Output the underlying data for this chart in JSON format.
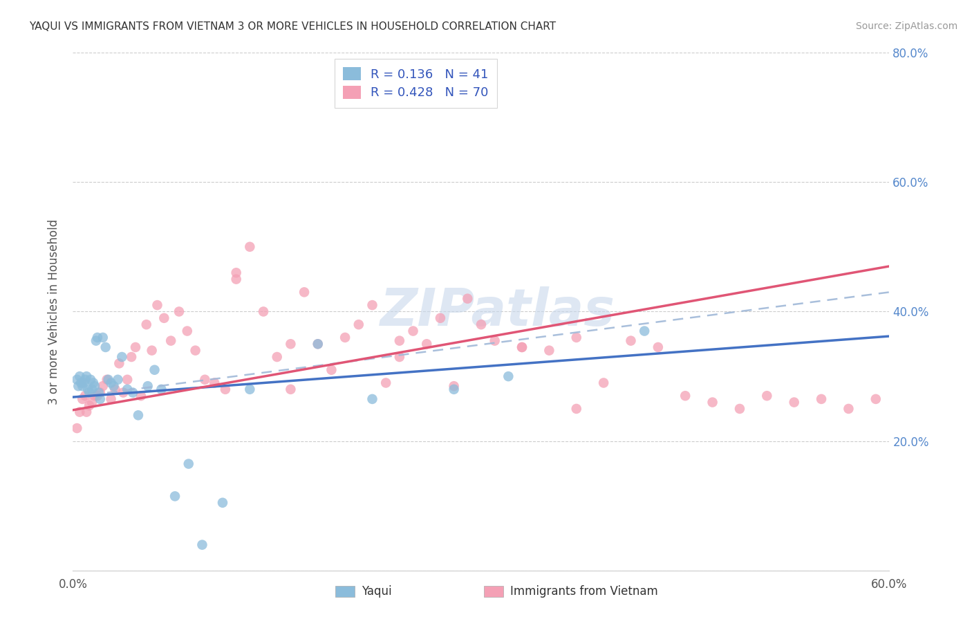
{
  "title": "YAQUI VS IMMIGRANTS FROM VIETNAM 3 OR MORE VEHICLES IN HOUSEHOLD CORRELATION CHART",
  "source": "Source: ZipAtlas.com",
  "ylabel": "3 or more Vehicles in Household",
  "xlim": [
    0.0,
    0.6
  ],
  "ylim": [
    0.0,
    0.8
  ],
  "r_yaqui": 0.136,
  "n_yaqui": 41,
  "r_vietnam": 0.428,
  "n_vietnam": 70,
  "color_yaqui": "#8bbcdb",
  "color_vietnam": "#f4a0b5",
  "line_color_yaqui": "#4472c4",
  "line_color_vietnam": "#e05575",
  "dash_color": "#a0b8d8",
  "watermark": "ZIPatlas",
  "background_color": "#ffffff",
  "yaqui_x": [
    0.003,
    0.004,
    0.005,
    0.006,
    0.007,
    0.008,
    0.009,
    0.01,
    0.011,
    0.012,
    0.013,
    0.014,
    0.015,
    0.016,
    0.017,
    0.018,
    0.019,
    0.02,
    0.022,
    0.024,
    0.026,
    0.028,
    0.03,
    0.033,
    0.036,
    0.04,
    0.044,
    0.048,
    0.055,
    0.06,
    0.065,
    0.075,
    0.085,
    0.095,
    0.11,
    0.13,
    0.18,
    0.22,
    0.28,
    0.32,
    0.42
  ],
  "yaqui_y": [
    0.295,
    0.285,
    0.3,
    0.29,
    0.285,
    0.29,
    0.295,
    0.3,
    0.28,
    0.275,
    0.295,
    0.28,
    0.29,
    0.285,
    0.355,
    0.36,
    0.275,
    0.265,
    0.36,
    0.345,
    0.295,
    0.29,
    0.285,
    0.295,
    0.33,
    0.28,
    0.275,
    0.24,
    0.285,
    0.31,
    0.28,
    0.115,
    0.165,
    0.04,
    0.105,
    0.28,
    0.35,
    0.265,
    0.28,
    0.3,
    0.37
  ],
  "vietnam_x": [
    0.003,
    0.005,
    0.007,
    0.009,
    0.01,
    0.012,
    0.014,
    0.016,
    0.018,
    0.02,
    0.022,
    0.025,
    0.028,
    0.031,
    0.034,
    0.037,
    0.04,
    0.043,
    0.046,
    0.05,
    0.054,
    0.058,
    0.062,
    0.067,
    0.072,
    0.078,
    0.084,
    0.09,
    0.097,
    0.104,
    0.112,
    0.12,
    0.13,
    0.14,
    0.15,
    0.16,
    0.17,
    0.18,
    0.19,
    0.2,
    0.21,
    0.22,
    0.23,
    0.24,
    0.25,
    0.26,
    0.27,
    0.28,
    0.29,
    0.3,
    0.31,
    0.33,
    0.35,
    0.37,
    0.39,
    0.41,
    0.43,
    0.45,
    0.47,
    0.49,
    0.51,
    0.53,
    0.55,
    0.57,
    0.59,
    0.33,
    0.37,
    0.24,
    0.12,
    0.16
  ],
  "vietnam_y": [
    0.22,
    0.245,
    0.265,
    0.27,
    0.245,
    0.255,
    0.26,
    0.27,
    0.27,
    0.275,
    0.285,
    0.295,
    0.265,
    0.28,
    0.32,
    0.275,
    0.295,
    0.33,
    0.345,
    0.27,
    0.38,
    0.34,
    0.41,
    0.39,
    0.355,
    0.4,
    0.37,
    0.34,
    0.295,
    0.29,
    0.28,
    0.46,
    0.5,
    0.4,
    0.33,
    0.35,
    0.43,
    0.35,
    0.31,
    0.36,
    0.38,
    0.41,
    0.29,
    0.33,
    0.37,
    0.35,
    0.39,
    0.285,
    0.42,
    0.38,
    0.355,
    0.345,
    0.34,
    0.25,
    0.29,
    0.355,
    0.345,
    0.27,
    0.26,
    0.25,
    0.27,
    0.26,
    0.265,
    0.25,
    0.265,
    0.345,
    0.36,
    0.355,
    0.45,
    0.28
  ],
  "blue_line_x0": 0.0,
  "blue_line_x1": 0.6,
  "blue_line_y0": 0.268,
  "blue_line_y1": 0.362,
  "pink_line_x0": 0.0,
  "pink_line_x1": 0.6,
  "pink_line_y0": 0.248,
  "pink_line_y1": 0.47,
  "dash_line_x0": 0.0,
  "dash_line_x1": 0.6,
  "dash_line_y0": 0.268,
  "dash_line_y1": 0.43
}
